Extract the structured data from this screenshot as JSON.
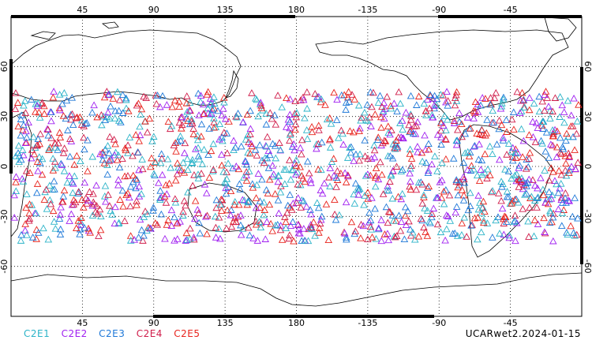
{
  "map": {
    "top_lon_ticks": [
      "45",
      "90",
      "135",
      "180",
      "-135",
      "-90",
      "-45"
    ],
    "bottom_lon_ticks": [
      "45",
      "90",
      "135",
      "180",
      "-135",
      "-90",
      "-45"
    ],
    "lat_ticks": [
      "60",
      "30",
      "0",
      "-30",
      "-60"
    ],
    "lat_range": [
      -90,
      90
    ],
    "lon_range_center": 180,
    "grid": "dotted",
    "marker": "open-triangle",
    "coverage_lat": [
      -45,
      45
    ]
  },
  "legend": {
    "items": [
      {
        "label": "C2E1",
        "color": "#2bb3c8"
      },
      {
        "label": "C2E2",
        "color": "#a020f0"
      },
      {
        "label": "C2E3",
        "color": "#1e78d8"
      },
      {
        "label": "C2E4",
        "color": "#d01c4a"
      },
      {
        "label": "C2E5",
        "color": "#e8231c"
      }
    ]
  },
  "dataset_label": "UCARwet2.2024-01-15"
}
